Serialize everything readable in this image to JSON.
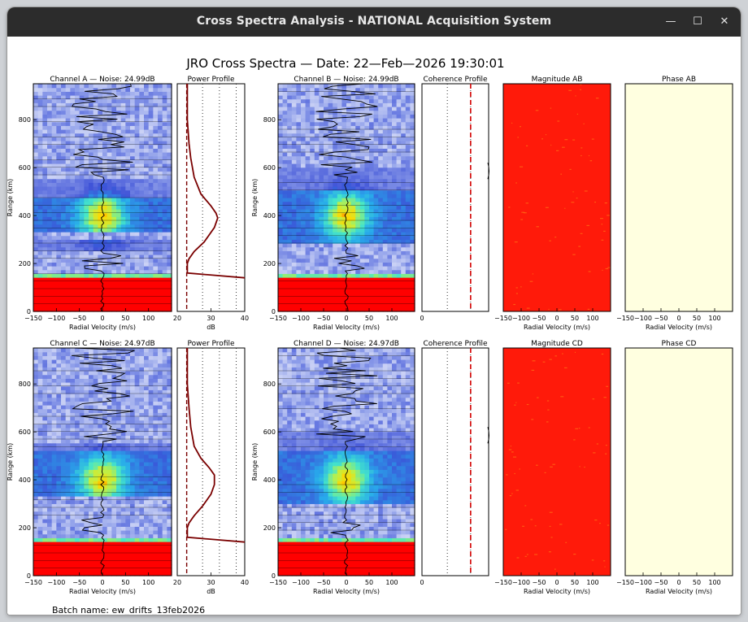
{
  "window": {
    "title": "Cross Spectra Analysis - NATIONAL Acquisition System",
    "minimize_glyph": "—",
    "maximize_glyph": "☐",
    "close_glyph": "✕"
  },
  "figure": {
    "main_title": "JRO Cross Spectra — Date: 22—Feb—2026 19:30:01",
    "batch_label": "Batch name: ew_drifts_13feb2026"
  },
  "rows": [
    {
      "spectra_left": {
        "title": "Channel A — Noise: 24.99dB",
        "ylabel": "Range (km)",
        "xlabel": "Radial Velocity (m/s)"
      },
      "power": {
        "title": "Power Profile",
        "xlabel": "dB"
      },
      "spectra_right": {
        "title": "Channel B — Noise: 24.99dB",
        "ylabel": "Range (km)",
        "xlabel": "Radial Velocity (m/s)"
      },
      "coherence": {
        "title": "Coherence Profile"
      },
      "magnitude": {
        "title": "Magnitude AB",
        "xlabel": "Radial Velocity (m/s)"
      },
      "phase": {
        "title": "Phase AB",
        "xlabel": "Radial Velocity (m/s)"
      }
    },
    {
      "spectra_left": {
        "title": "Channel C — Noise: 24.97dB",
        "ylabel": "Range (km)",
        "xlabel": "Radial Velocity (m/s)"
      },
      "power": {
        "title": "Power Profile",
        "xlabel": "dB"
      },
      "spectra_right": {
        "title": "Channel D — Noise: 24.97dB",
        "ylabel": "Range (km)",
        "xlabel": "Radial Velocity (m/s)"
      },
      "coherence": {
        "title": "Coherence Profile"
      },
      "magnitude": {
        "title": "Magnitude CD",
        "xlabel": "Radial Velocity (m/s)"
      },
      "phase": {
        "title": "Phase CD",
        "xlabel": "Radial Velocity (m/s)"
      }
    }
  ],
  "axes": {
    "velocity_ticks": [
      "−150",
      "−100",
      "−50",
      "0",
      "50",
      "100"
    ],
    "range_ticks": [
      "0",
      "200",
      "400",
      "600",
      "800"
    ],
    "power_ticks": [
      "20",
      "30",
      "40"
    ],
    "coherence_ticks": [
      "0"
    ]
  },
  "colors": {
    "spectra_strong": "#ff0000",
    "band_yellow": "#ffd800",
    "magnitude_bg": "#ff1a0a",
    "phase_bg": "#ffffe0",
    "profile_line": "#7a0000",
    "coherence_marker": "#d40000"
  },
  "chart_data": [
    {
      "type": "heatmap",
      "panel": "Channel A spectra",
      "x_range": [
        -150,
        150
      ],
      "y_range": [
        0,
        950
      ],
      "layers": [
        {
          "range_km": [
            0,
            150
          ],
          "level": "saturated (red)"
        },
        {
          "range_km": [
            150,
            165
          ],
          "level": "high (yellow)"
        },
        {
          "range_km": [
            250,
            300
          ],
          "level": "medium (blue-cyan)"
        },
        {
          "range_km": [
            340,
            480
          ],
          "level": "peak (cyan-yellow center near 0 m/s, ~400 km)"
        },
        {
          "range_km": [
            480,
            560
          ],
          "level": "medium (blue)"
        },
        {
          "range_km": [
            560,
            950
          ],
          "level": "noise (pale blue)"
        }
      ]
    },
    {
      "type": "line",
      "panel": "Power Profile (A)",
      "xlabel": "dB",
      "xlim": [
        20,
        40
      ],
      "ylim": [
        0,
        950
      ],
      "x": [
        23,
        23,
        23.5,
        24,
        25,
        27,
        30,
        31.5,
        32,
        31,
        28,
        25,
        23.5,
        23,
        23,
        23,
        40
      ],
      "y": [
        950,
        800,
        700,
        640,
        560,
        490,
        440,
        410,
        390,
        350,
        290,
        250,
        220,
        200,
        175,
        160,
        140
      ]
    },
    {
      "type": "heatmap",
      "panel": "Channel B spectra",
      "x_range": [
        -150,
        150
      ],
      "y_range": [
        0,
        950
      ],
      "layers": [
        {
          "range_km": [
            0,
            150
          ],
          "level": "saturated (red)"
        },
        {
          "range_km": [
            150,
            165
          ],
          "level": "high (yellow)"
        },
        {
          "range_km": [
            280,
            500
          ],
          "level": "peak (cyan-yellow center near 0 m/s, ~400 km)"
        },
        {
          "range_km": [
            500,
            600
          ],
          "level": "medium (blue)"
        },
        {
          "range_km": [
            600,
            950
          ],
          "level": "noise (pale blue)"
        }
      ]
    },
    {
      "type": "line",
      "panel": "Coherence Profile (AB)",
      "x_ticks": [
        "0"
      ],
      "ylim": [
        0,
        950
      ]
    },
    {
      "type": "heatmap",
      "panel": "Magnitude AB",
      "x_range": [
        -150,
        150
      ],
      "y_range": [
        0,
        950
      ],
      "layers": [
        {
          "range_km": [
            0,
            950
          ],
          "level": "saturated (red) with faint yellow speckle"
        }
      ]
    },
    {
      "type": "heatmap",
      "panel": "Phase AB",
      "x_range": [
        -150,
        150
      ],
      "y_range": [
        0,
        950
      ],
      "layers": [
        {
          "range_km": [
            0,
            950
          ],
          "level": "uniform pale yellow"
        }
      ]
    },
    {
      "type": "heatmap",
      "panel": "Channel C spectra",
      "x_range": [
        -150,
        150
      ],
      "y_range": [
        0,
        950
      ],
      "layers": [
        {
          "range_km": [
            0,
            150
          ],
          "level": "saturated (red)"
        },
        {
          "range_km": [
            150,
            165
          ],
          "level": "high (yellow)"
        },
        {
          "range_km": [
            340,
            520
          ],
          "level": "peak (cyan-yellow center near 0 m/s, ~400 km)"
        },
        {
          "range_km": [
            520,
            560
          ],
          "level": "medium (blue)"
        },
        {
          "range_km": [
            560,
            950
          ],
          "level": "noise (pale blue)"
        }
      ]
    },
    {
      "type": "line",
      "panel": "Power Profile (C)",
      "xlabel": "dB",
      "xlim": [
        20,
        40
      ],
      "ylim": [
        0,
        950
      ],
      "x": [
        23,
        23,
        23.5,
        24,
        25,
        27,
        29.5,
        31,
        31,
        30,
        27.5,
        25,
        23.5,
        23,
        23,
        23,
        40
      ],
      "y": [
        950,
        800,
        700,
        620,
        540,
        490,
        450,
        420,
        380,
        340,
        290,
        250,
        220,
        200,
        175,
        160,
        140
      ]
    },
    {
      "type": "heatmap",
      "panel": "Channel D spectra",
      "x_range": [
        -150,
        150
      ],
      "y_range": [
        0,
        950
      ],
      "layers": [
        {
          "range_km": [
            0,
            150
          ],
          "level": "saturated (red)"
        },
        {
          "range_km": [
            150,
            165
          ],
          "level": "high (yellow)"
        },
        {
          "range_km": [
            300,
            520
          ],
          "level": "peak (cyan-yellow center near 0 m/s, ~400 km)"
        },
        {
          "range_km": [
            520,
            600
          ],
          "level": "medium (blue)"
        },
        {
          "range_km": [
            600,
            950
          ],
          "level": "noise (pale blue)"
        }
      ]
    },
    {
      "type": "line",
      "panel": "Coherence Profile (CD)",
      "x_ticks": [
        "0"
      ],
      "ylim": [
        0,
        950
      ]
    },
    {
      "type": "heatmap",
      "panel": "Magnitude CD",
      "x_range": [
        -150,
        150
      ],
      "y_range": [
        0,
        950
      ],
      "layers": [
        {
          "range_km": [
            0,
            950
          ],
          "level": "saturated (red) with faint yellow speckle"
        }
      ]
    },
    {
      "type": "heatmap",
      "panel": "Phase CD",
      "x_range": [
        -150,
        150
      ],
      "y_range": [
        0,
        950
      ],
      "layers": [
        {
          "range_km": [
            0,
            950
          ],
          "level": "uniform pale yellow"
        }
      ]
    }
  ]
}
